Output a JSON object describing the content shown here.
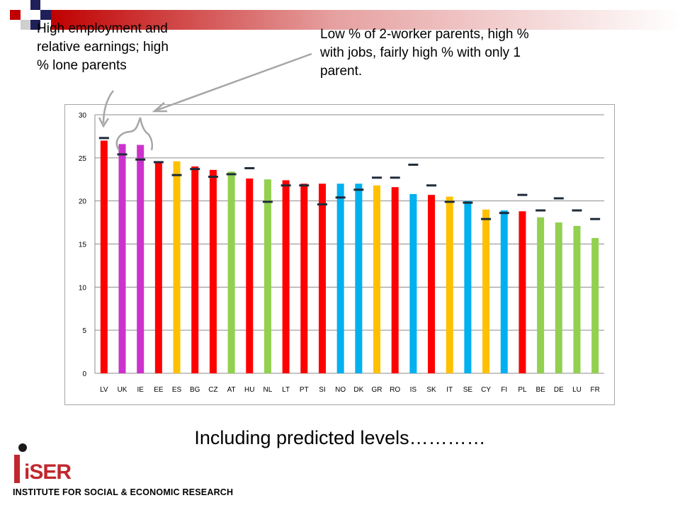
{
  "annotations": {
    "left": "High employment and relative earnings; high % lone parents",
    "right": "Low % of 2-worker parents, high % with jobs, fairly high % with only 1 parent."
  },
  "caption": "Including predicted levels…………",
  "logo": {
    "word": "iSER",
    "subtitle": "INSTITUTE FOR SOCIAL & ECONOMIC RESEARCH"
  },
  "colors": {
    "red": "#ff0000",
    "magenta": "#cc33cc",
    "orange": "#ffc000",
    "green": "#92d050",
    "blue": "#00b0f0",
    "marker": "#1f2b3a",
    "deco_red": "#c00000",
    "deco_navy": "#1f1f5a"
  },
  "chart_data": {
    "type": "bar",
    "title": "",
    "xlabel": "",
    "ylabel": "",
    "ylim": [
      0,
      30
    ],
    "yticks": [
      0,
      5,
      10,
      15,
      20,
      25,
      30
    ],
    "grid": true,
    "legend": "none",
    "categories": [
      "LV",
      "UK",
      "IE",
      "EE",
      "ES",
      "BG",
      "CZ",
      "AT",
      "HU",
      "NL",
      "LT",
      "PT",
      "SI",
      "NO",
      "DK",
      "GR",
      "RO",
      "IS",
      "SK",
      "IT",
      "SE",
      "CY",
      "FI",
      "PL",
      "BE",
      "DE",
      "LU",
      "FR"
    ],
    "values": [
      27.0,
      26.6,
      26.5,
      24.6,
      24.6,
      24.0,
      23.6,
      23.4,
      22.6,
      22.5,
      22.4,
      22.0,
      22.0,
      22.0,
      22.0,
      21.8,
      21.6,
      20.8,
      20.7,
      20.5,
      20.0,
      19.0,
      18.9,
      18.8,
      18.1,
      17.5,
      17.1,
      15.7
    ],
    "bar_colors": [
      "red",
      "magenta",
      "magenta",
      "red",
      "orange",
      "red",
      "red",
      "green",
      "red",
      "green",
      "red",
      "red",
      "red",
      "blue",
      "blue",
      "orange",
      "red",
      "blue",
      "red",
      "orange",
      "blue",
      "orange",
      "blue",
      "red",
      "green",
      "green",
      "green",
      "green"
    ],
    "predicted": [
      27.3,
      25.4,
      24.8,
      24.5,
      23.0,
      23.7,
      22.8,
      23.1,
      23.8,
      19.9,
      21.8,
      21.8,
      19.6,
      20.4,
      21.3,
      22.7,
      22.7,
      24.2,
      21.8,
      19.9,
      19.8,
      17.9,
      18.6,
      20.7,
      18.9,
      20.3,
      18.9,
      17.9
    ]
  }
}
